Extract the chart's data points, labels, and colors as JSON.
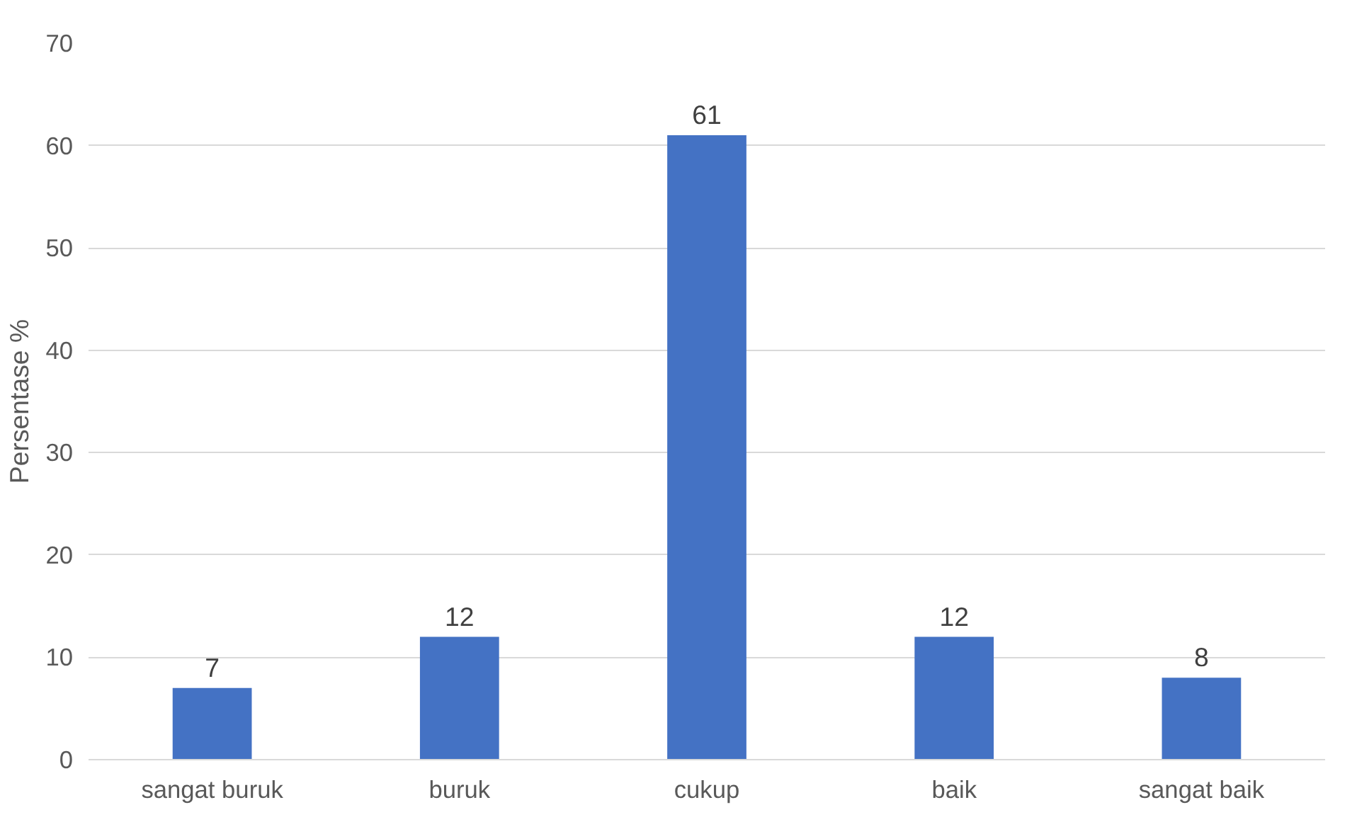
{
  "chart_data": {
    "type": "bar",
    "ylabel": "Persentase %",
    "categories": [
      "sangat buruk",
      "buruk",
      "cukup",
      "baik",
      "sangat baik"
    ],
    "values": [
      7,
      12,
      61,
      12,
      8
    ],
    "color": "#4472c4",
    "ylim": [
      0,
      70
    ],
    "yticks": [
      0,
      10,
      20,
      30,
      40,
      50,
      60,
      70
    ],
    "grid": "y",
    "data_labels": true
  }
}
